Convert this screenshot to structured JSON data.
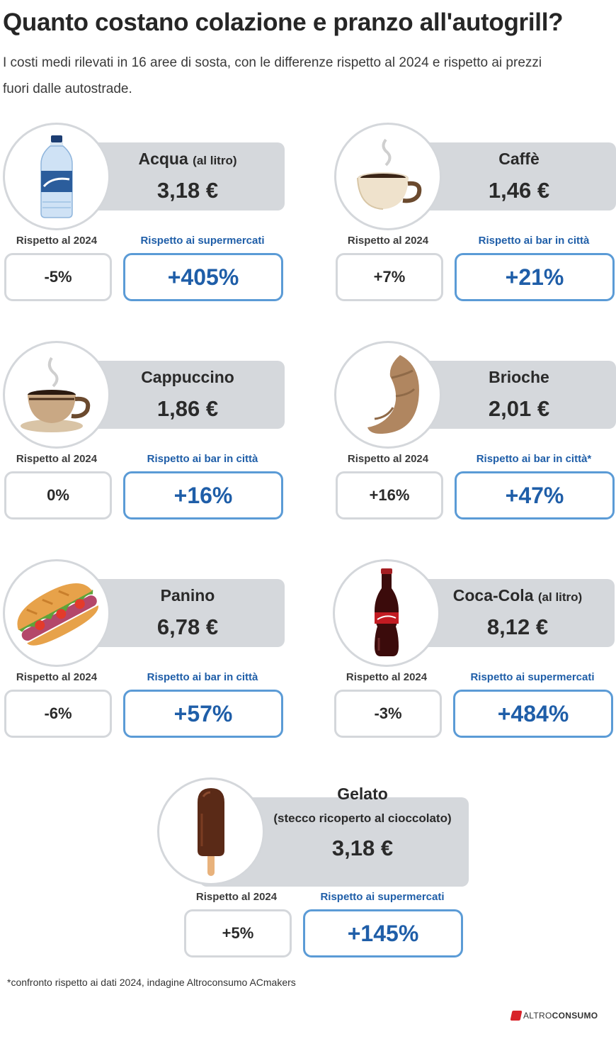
{
  "title": "Quanto costano colazione e pranzo all'autogrill?",
  "subtitle": "I costi medi rilevati in 16 aree di sosta, con le differenze rispetto al 2024 e rispetto ai prezzi fuori dalle autostrade.",
  "items": [
    {
      "name": "Acqua",
      "unit": "(al litro)",
      "price": "3,18 €",
      "label_a": "Rispetto al 2024",
      "value_a": "-5%",
      "label_b": "Rispetto ai supermercati",
      "value_b": "+405%",
      "icon": "water-bottle-icon"
    },
    {
      "name": "Caffè",
      "unit": "",
      "price": "1,46 €",
      "label_a": "Rispetto al 2024",
      "value_a": "+7%",
      "label_b": "Rispetto ai bar in città",
      "value_b": "+21%",
      "icon": "espresso-cup-icon"
    },
    {
      "name": "Cappuccino",
      "unit": "",
      "price": "1,86 €",
      "label_a": "Rispetto al 2024",
      "value_a": "0%",
      "label_b": "Rispetto ai bar in città",
      "value_b": "+16%",
      "icon": "cappuccino-cup-icon"
    },
    {
      "name": "Brioche",
      "unit": "",
      "price": "2,01 €",
      "label_a": "Rispetto al 2024",
      "value_a": "+16%",
      "label_b": "Rispetto ai bar in città*",
      "value_b": "+47%",
      "icon": "croissant-icon"
    },
    {
      "name": "Panino",
      "unit": "",
      "price": "6,78 €",
      "label_a": "Rispetto al 2024",
      "value_a": "-6%",
      "label_b": "Rispetto ai bar in città",
      "value_b": "+57%",
      "icon": "sandwich-icon"
    },
    {
      "name": "Coca-Cola",
      "unit": "(al litro)",
      "price": "8,12 €",
      "label_a": "Rispetto al 2024",
      "value_a": "-3%",
      "label_b": "Rispetto ai supermercati",
      "value_b": "+484%",
      "icon": "cola-bottle-icon"
    },
    {
      "name": "Gelato",
      "unit": "(stecco ricoperto al cioccolato)",
      "price": "3,18 €",
      "label_a": "Rispetto al 2024",
      "value_a": "+5%",
      "label_b": "Rispetto ai supermercati",
      "value_b": "+145%",
      "icon": "ice-cream-stick-icon"
    }
  ],
  "footnote": "*confronto rispetto ai dati 2024, indagine Altroconsumo ACmakers",
  "logo": {
    "part1": "ALTRO",
    "part2": "CONSUMO"
  },
  "colors": {
    "accent": "#1f5ea8",
    "box_border": "#5b9bd6",
    "banner": "#d5d8dc",
    "brand": "#d8232a"
  }
}
